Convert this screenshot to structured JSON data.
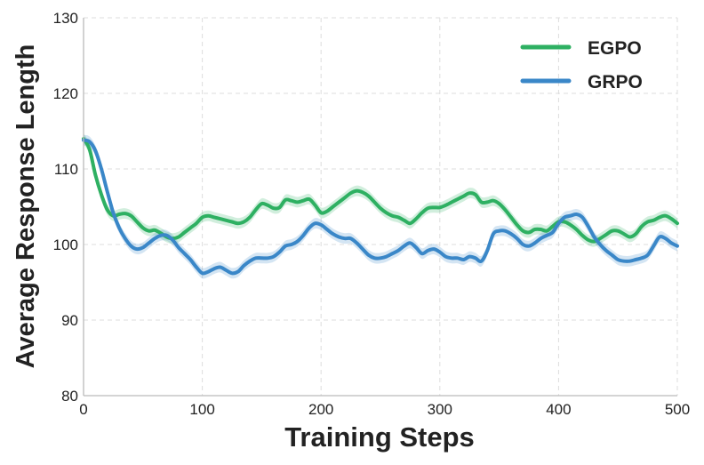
{
  "chart_data": {
    "type": "line",
    "title": "",
    "xlabel": "Training Steps",
    "ylabel": "Average Response Length",
    "xlim": [
      0,
      500
    ],
    "ylim": [
      80,
      130
    ],
    "xticks": [
      0,
      100,
      200,
      300,
      400,
      500
    ],
    "yticks": [
      80,
      90,
      100,
      110,
      120,
      130
    ],
    "grid": true,
    "legend_position": "top-right",
    "series": [
      {
        "name": "EGPO",
        "color": "#2eb062",
        "x": [
          0,
          5,
          10,
          15,
          20,
          25,
          30,
          35,
          40,
          45,
          50,
          55,
          60,
          65,
          70,
          75,
          80,
          85,
          90,
          95,
          100,
          105,
          110,
          115,
          120,
          125,
          130,
          135,
          140,
          145,
          150,
          155,
          160,
          165,
          170,
          175,
          180,
          185,
          190,
          195,
          200,
          205,
          210,
          215,
          220,
          225,
          230,
          235,
          240,
          245,
          250,
          255,
          260,
          265,
          270,
          275,
          280,
          285,
          290,
          295,
          300,
          305,
          310,
          315,
          320,
          325,
          330,
          335,
          340,
          345,
          350,
          355,
          360,
          365,
          370,
          375,
          380,
          385,
          390,
          395,
          400,
          405,
          410,
          415,
          420,
          425,
          430,
          435,
          440,
          445,
          450,
          455,
          460,
          465,
          470,
          475,
          480,
          485,
          490,
          495,
          500
        ],
        "y": [
          114.0,
          112.6,
          109.2,
          106.6,
          104.6,
          103.8,
          104.0,
          104.1,
          103.8,
          103.0,
          102.2,
          101.8,
          101.9,
          101.5,
          101.0,
          100.8,
          101.0,
          101.6,
          102.2,
          102.8,
          103.6,
          103.8,
          103.6,
          103.4,
          103.2,
          103.0,
          102.8,
          103.0,
          103.6,
          104.6,
          105.4,
          105.2,
          104.8,
          104.9,
          105.9,
          105.8,
          105.6,
          105.8,
          106.0,
          105.2,
          104.2,
          104.4,
          105.0,
          105.6,
          106.2,
          106.8,
          107.1,
          106.9,
          106.4,
          105.6,
          104.8,
          104.2,
          103.8,
          103.6,
          103.2,
          102.8,
          103.4,
          104.2,
          104.8,
          104.9,
          104.9,
          105.2,
          105.6,
          106.0,
          106.4,
          106.8,
          106.6,
          105.6,
          105.6,
          105.8,
          105.4,
          104.6,
          103.6,
          102.6,
          101.8,
          101.6,
          102.0,
          102.0,
          101.8,
          102.4,
          103.0,
          103.0,
          102.6,
          102.0,
          101.2,
          100.6,
          100.4,
          100.8,
          101.3,
          101.8,
          101.8,
          101.4,
          101.0,
          101.4,
          102.4,
          103.0,
          103.2,
          103.6,
          103.8,
          103.4,
          102.8
        ]
      },
      {
        "name": "GRPO",
        "color": "#3a87c8",
        "x": [
          0,
          5,
          10,
          15,
          20,
          25,
          30,
          35,
          40,
          45,
          50,
          55,
          60,
          65,
          70,
          75,
          80,
          85,
          90,
          95,
          100,
          105,
          110,
          115,
          120,
          125,
          130,
          135,
          140,
          145,
          150,
          155,
          160,
          165,
          170,
          175,
          180,
          185,
          190,
          195,
          200,
          205,
          210,
          215,
          220,
          225,
          230,
          235,
          240,
          245,
          250,
          255,
          260,
          265,
          270,
          275,
          280,
          285,
          290,
          295,
          300,
          305,
          310,
          315,
          320,
          325,
          330,
          335,
          340,
          345,
          350,
          355,
          360,
          365,
          370,
          375,
          380,
          385,
          390,
          395,
          400,
          405,
          410,
          415,
          420,
          425,
          430,
          435,
          440,
          445,
          450,
          455,
          460,
          465,
          470,
          475,
          480,
          485,
          490,
          495,
          500
        ],
        "y": [
          113.8,
          113.6,
          112.4,
          110.0,
          107.0,
          104.2,
          102.2,
          100.8,
          99.8,
          99.4,
          99.6,
          100.2,
          100.8,
          101.2,
          101.2,
          100.6,
          99.6,
          98.8,
          98.0,
          97.0,
          96.2,
          96.4,
          96.8,
          97.0,
          96.6,
          96.2,
          96.4,
          97.2,
          97.8,
          98.2,
          98.2,
          98.2,
          98.4,
          99.0,
          99.8,
          100.0,
          100.4,
          101.2,
          102.2,
          102.8,
          102.6,
          102.0,
          101.4,
          101.0,
          100.8,
          100.8,
          100.2,
          99.4,
          98.6,
          98.2,
          98.2,
          98.4,
          98.8,
          99.2,
          99.8,
          100.2,
          99.6,
          98.8,
          99.2,
          99.4,
          99.0,
          98.4,
          98.2,
          98.2,
          98.0,
          98.4,
          98.2,
          97.8,
          99.2,
          101.4,
          101.8,
          101.8,
          101.4,
          100.8,
          100.0,
          99.8,
          100.2,
          100.8,
          101.2,
          101.6,
          102.8,
          103.6,
          103.8,
          104.0,
          103.6,
          102.4,
          101.0,
          100.0,
          99.2,
          98.6,
          98.0,
          97.8,
          97.8,
          98.0,
          98.2,
          98.6,
          99.8,
          101.0,
          100.8,
          100.2,
          99.8
        ]
      }
    ]
  }
}
